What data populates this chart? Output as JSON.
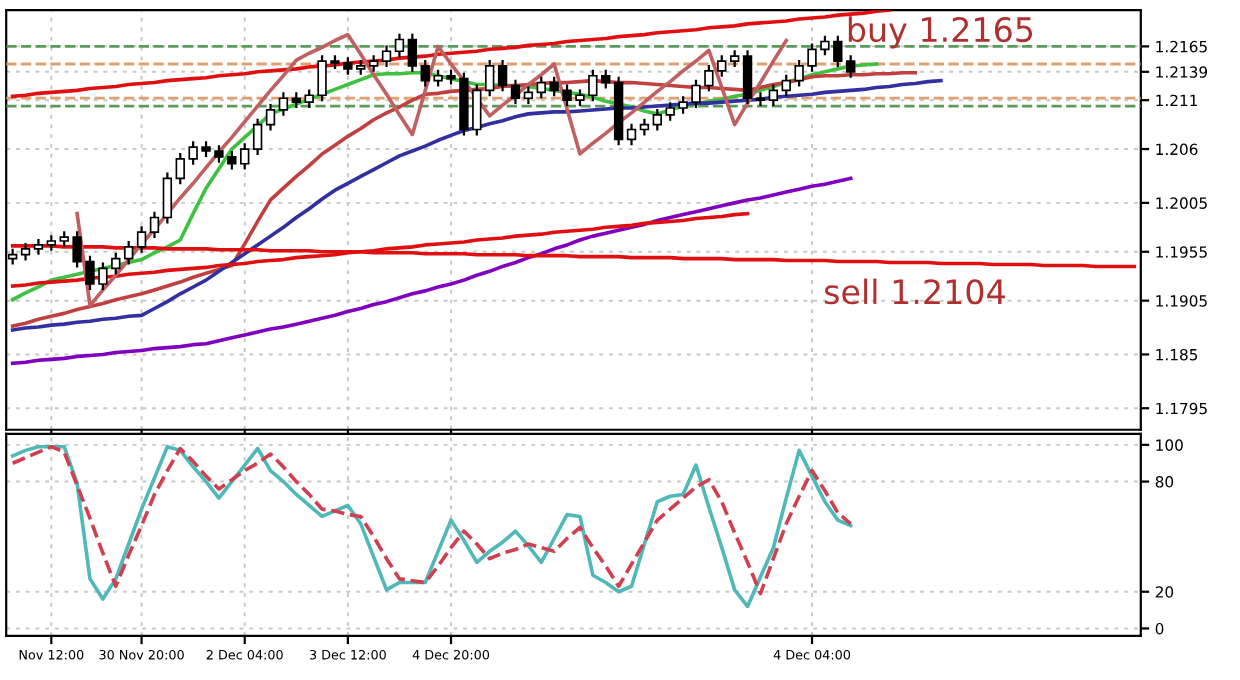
{
  "chart_data": [
    {
      "type": "candlestick",
      "tick_labels": "y",
      "grid": true,
      "categories": [
        null,
        null,
        null,
        null,
        null,
        null,
        null,
        null,
        null,
        null,
        null,
        null,
        null,
        null,
        null,
        null,
        null,
        null,
        null,
        null,
        null,
        null,
        null,
        null,
        null,
        null,
        null,
        null,
        null,
        null,
        null,
        null,
        null,
        null,
        null,
        null,
        null,
        null,
        null,
        null,
        null,
        null,
        null,
        null,
        null,
        null,
        null,
        null,
        null,
        null,
        null,
        null,
        null,
        null,
        null,
        null,
        null,
        null,
        null,
        null,
        null,
        null,
        null,
        null,
        null,
        null,
        null,
        null,
        null,
        null,
        null,
        null,
        null,
        null,
        null,
        null,
        null,
        null,
        null,
        null,
        null,
        null,
        null,
        null,
        null,
        null,
        null,
        null
      ],
      "ohlc": [
        [
          1.1948,
          1.1958,
          1.1942,
          1.1952
        ],
        [
          1.1952,
          1.1964,
          1.1946,
          1.1958
        ],
        [
          1.1958,
          1.1968,
          1.1952,
          1.1962
        ],
        [
          1.1962,
          1.1972,
          1.1956,
          1.1966
        ],
        [
          1.1966,
          1.1976,
          1.196,
          1.197
        ],
        [
          1.197,
          1.1976,
          1.1939,
          1.1945
        ],
        [
          1.1945,
          1.1951,
          1.1916,
          1.1922
        ],
        [
          1.1922,
          1.1944,
          1.1916,
          1.1938
        ],
        [
          1.1938,
          1.1954,
          1.1932,
          1.1948
        ],
        [
          1.1948,
          1.1966,
          1.1942,
          1.196
        ],
        [
          1.196,
          1.1981,
          1.1954,
          1.1975
        ],
        [
          1.1975,
          1.1996,
          1.1969,
          1.199
        ],
        [
          1.199,
          1.2036,
          1.1984,
          1.203
        ],
        [
          1.203,
          1.2056,
          1.2024,
          1.205
        ],
        [
          1.205,
          1.2068,
          1.2044,
          1.2062
        ],
        [
          1.2062,
          1.2068,
          1.2052,
          1.2058
        ],
        [
          1.2058,
          1.2064,
          1.2046,
          1.2052
        ],
        [
          1.2052,
          1.2058,
          1.2039,
          1.2045
        ],
        [
          1.2045,
          1.2066,
          1.2039,
          1.206
        ],
        [
          1.206,
          1.2091,
          1.2054,
          1.2085
        ],
        [
          1.2085,
          1.2106,
          1.2079,
          1.21
        ],
        [
          1.21,
          1.2118,
          1.2094,
          1.2112
        ],
        [
          1.2112,
          1.2118,
          1.2102,
          1.2108
        ],
        [
          1.2108,
          1.2121,
          1.2102,
          1.2115
        ],
        [
          1.2115,
          1.2156,
          1.2109,
          1.215
        ],
        [
          1.215,
          1.2156,
          1.2142,
          1.2148
        ],
        [
          1.2148,
          1.2154,
          1.2136,
          1.2142
        ],
        [
          1.2142,
          1.2151,
          1.2136,
          1.2145
        ],
        [
          1.2145,
          1.2156,
          1.2139,
          1.215
        ],
        [
          1.215,
          1.2166,
          1.2144,
          1.216
        ],
        [
          1.216,
          1.2178,
          1.2154,
          1.2172
        ],
        [
          1.2172,
          1.2178,
          1.2139,
          1.2145
        ],
        [
          1.2145,
          1.2151,
          1.2124,
          1.213
        ],
        [
          1.213,
          1.2141,
          1.2124,
          1.2135
        ],
        [
          1.2135,
          1.2141,
          1.2126,
          1.2132
        ],
        [
          1.2132,
          1.2138,
          1.2074,
          1.208
        ],
        [
          1.208,
          1.2126,
          1.2074,
          1.212
        ],
        [
          1.212,
          1.2151,
          1.2114,
          1.2145
        ],
        [
          1.2145,
          1.2151,
          1.2119,
          1.2125
        ],
        [
          1.2125,
          1.2131,
          1.2106,
          1.2112
        ],
        [
          1.2112,
          1.2124,
          1.2106,
          1.2118
        ],
        [
          1.2118,
          1.2134,
          1.2112,
          1.2128
        ],
        [
          1.2128,
          1.2134,
          1.2114,
          1.212
        ],
        [
          1.212,
          1.2126,
          1.2104,
          1.211
        ],
        [
          1.211,
          1.2121,
          1.2104,
          1.2115
        ],
        [
          1.2115,
          1.2141,
          1.2109,
          1.2135
        ],
        [
          1.2135,
          1.2141,
          1.2122,
          1.2128
        ],
        [
          1.2128,
          1.2134,
          1.2064,
          1.207
        ],
        [
          1.207,
          1.2086,
          1.2064,
          1.208
        ],
        [
          1.208,
          1.2091,
          1.2074,
          1.2085
        ],
        [
          1.2085,
          1.2101,
          1.2079,
          1.2095
        ],
        [
          1.2095,
          1.2108,
          1.2089,
          1.2102
        ],
        [
          1.2102,
          1.2114,
          1.2096,
          1.2108
        ],
        [
          1.2108,
          1.2131,
          1.2102,
          1.2125
        ],
        [
          1.2125,
          1.2146,
          1.2119,
          1.214
        ],
        [
          1.214,
          1.2156,
          1.2134,
          1.215
        ],
        [
          1.215,
          1.2161,
          1.2144,
          1.2155
        ],
        [
          1.2155,
          1.2161,
          1.2106,
          1.2112
        ],
        [
          1.2112,
          1.2118,
          1.2104,
          1.211
        ],
        [
          1.211,
          1.2126,
          1.2104,
          1.212
        ],
        [
          1.212,
          1.2136,
          1.2114,
          1.213
        ],
        [
          1.213,
          1.2151,
          1.2124,
          1.2145
        ],
        [
          1.2145,
          1.2168,
          1.2139,
          1.2162
        ],
        [
          1.2162,
          1.2176,
          1.2156,
          1.217
        ],
        [
          1.217,
          1.2176,
          1.2144,
          1.215
        ],
        [
          1.215,
          1.2156,
          1.2133,
          1.2139
        ],
        null,
        null,
        null,
        null,
        null,
        null,
        null,
        null,
        null,
        null,
        null,
        null,
        null,
        null,
        null,
        null,
        null,
        null,
        null,
        null,
        null,
        null
      ],
      "series": [
        {
          "type": "line",
          "color": "#40c040",
          "values": [
            1.1906,
            1.1913,
            1.1919,
            1.1926,
            1.1929,
            1.1932,
            1.1935,
            1.1938,
            1.1941,
            1.1944,
            1.1947,
            1.1954,
            1.196,
            1.1967,
            1.1994,
            1.202,
            1.204,
            1.206,
            1.2072,
            1.2084,
            1.2096,
            1.2101,
            1.2106,
            1.2111,
            1.2116,
            1.2121,
            1.2126,
            1.2131,
            1.2136,
            1.2137,
            1.2137,
            1.2138,
            1.2138,
            1.2135,
            1.2132,
            1.2129,
            1.2126,
            1.2126,
            1.2125,
            1.2125,
            1.2124,
            1.2122,
            1.212,
            1.2118,
            1.2116,
            1.2113,
            1.2109,
            1.2106,
            1.2103,
            1.2099,
            1.2096,
            1.21,
            1.2104,
            1.2106,
            1.2109,
            1.2111,
            1.2114,
            1.2116,
            1.212,
            1.2124,
            1.2128,
            1.2132,
            1.2136,
            1.2139,
            1.2142,
            1.2145,
            1.2146,
            1.2147,
            null,
            null,
            null,
            null,
            null,
            null,
            null,
            null,
            null,
            null,
            null,
            null,
            null,
            null,
            null,
            null,
            null,
            null,
            null,
            null
          ]
        },
        {
          "type": "line",
          "color": "#c04040",
          "values": [
            1.1879,
            1.1882,
            1.1886,
            1.1889,
            1.1892,
            1.1896,
            1.1899,
            1.1902,
            1.1906,
            1.1909,
            1.1912,
            1.1916,
            1.192,
            1.1924,
            1.1929,
            1.1933,
            1.1937,
            1.1941,
            1.1963,
            1.1986,
            1.2008,
            1.202,
            1.2032,
            1.2043,
            1.2055,
            1.2064,
            1.2073,
            1.2081,
            1.209,
            1.2097,
            1.2103,
            1.211,
            1.2116,
            1.2117,
            1.2119,
            1.212,
            1.2121,
            1.2122,
            1.2124,
            1.2125,
            1.2126,
            1.2127,
            1.2128,
            1.2128,
            1.2129,
            1.213,
            1.2129,
            1.2128,
            1.2128,
            1.2127,
            1.2126,
            1.2125,
            1.2124,
            1.2123,
            1.2123,
            1.2122,
            1.2121,
            1.212,
            1.2123,
            1.2126,
            1.2128,
            1.2131,
            1.2134,
            1.2135,
            1.2135,
            1.2136,
            1.2136,
            1.2137,
            1.2137,
            1.2138,
            1.2138,
            null,
            null,
            null,
            null,
            null,
            null,
            null,
            null,
            null,
            null,
            null,
            null,
            null,
            null,
            null,
            null,
            null
          ]
        },
        {
          "type": "line",
          "color": "#3030a0",
          "values": [
            1.1875,
            1.1877,
            1.1878,
            1.188,
            1.1881,
            1.1883,
            1.1884,
            1.1886,
            1.1887,
            1.1889,
            1.189,
            1.1897,
            1.1904,
            1.1912,
            1.1919,
            1.1926,
            1.1935,
            1.1944,
            1.1953,
            1.1962,
            1.1971,
            1.198,
            1.199,
            1.1999,
            1.2009,
            1.2018,
            1.2025,
            1.2032,
            1.2039,
            1.2046,
            1.2053,
            1.2058,
            1.2063,
            1.2069,
            1.2074,
            1.2079,
            1.2082,
            1.2086,
            1.2089,
            1.2093,
            1.2096,
            1.2097,
            1.2098,
            1.2098,
            1.2099,
            1.21,
            1.2101,
            1.2102,
            1.2102,
            1.2103,
            1.2104,
            1.2105,
            1.2106,
            1.2107,
            1.2107,
            1.2108,
            1.2109,
            1.211,
            1.2111,
            1.2113,
            1.2114,
            1.2115,
            1.2116,
            1.2118,
            1.2119,
            1.212,
            1.2121,
            1.2123,
            1.2124,
            1.2126,
            1.2127,
            1.2129,
            1.213,
            null,
            null,
            null,
            null,
            null,
            null,
            null,
            null,
            null,
            null,
            null,
            null,
            null,
            null,
            null
          ]
        },
        {
          "type": "line",
          "color": "#8000c0",
          "values": [
            1.1841,
            1.1842,
            1.1844,
            1.1845,
            1.1846,
            1.1848,
            1.1849,
            1.185,
            1.1852,
            1.1853,
            1.1854,
            1.1856,
            1.1857,
            1.1858,
            1.186,
            1.1861,
            1.1864,
            1.1867,
            1.187,
            1.1873,
            1.1876,
            1.1878,
            1.1881,
            1.1884,
            1.1887,
            1.189,
            1.1894,
            1.1897,
            1.1901,
            1.1904,
            1.1908,
            1.1912,
            1.1915,
            1.1919,
            1.1922,
            1.1926,
            1.1931,
            1.1935,
            1.194,
            1.1944,
            1.1949,
            1.1953,
            1.1958,
            1.1962,
            1.1967,
            1.1971,
            1.1974,
            1.1977,
            1.198,
            1.1983,
            1.1987,
            1.199,
            1.1993,
            1.1996,
            1.1999,
            1.2002,
            1.2005,
            1.2008,
            1.201,
            1.2013,
            1.2016,
            1.2019,
            1.2022,
            1.2024,
            1.2027,
            1.203,
            null,
            null,
            null,
            null,
            null,
            null,
            null,
            null,
            null,
            null,
            null,
            null,
            null,
            null,
            null,
            null,
            null,
            null,
            null,
            null,
            null,
            null
          ]
        },
        {
          "type": "line",
          "color": "#e01010",
          "values": [
            1.2114,
            1.2115,
            1.2117,
            1.2118,
            1.2119,
            1.212,
            1.2122,
            1.2123,
            1.2124,
            1.2126,
            1.2127,
            1.2128,
            1.213,
            1.2131,
            1.2132,
            1.2133,
            1.2135,
            1.2136,
            1.2137,
            1.2139,
            1.214,
            1.2141,
            1.2142,
            1.2144,
            1.2145,
            1.2146,
            1.2148,
            1.2149,
            1.215,
            1.2151,
            1.2153,
            1.2154,
            1.2155,
            1.2157,
            1.2158,
            1.2159,
            1.216,
            1.2162,
            1.2163,
            1.2164,
            1.2166,
            1.2167,
            1.2168,
            1.217,
            1.2171,
            1.2172,
            1.2173,
            1.2175,
            1.2176,
            1.2177,
            1.2179,
            1.218,
            1.2181,
            1.2182,
            1.2184,
            1.2185,
            1.2186,
            1.2188,
            1.2189,
            1.219,
            1.2191,
            1.2193,
            1.2194,
            1.2195,
            1.2197,
            1.2198,
            1.2199,
            1.2201,
            1.2202,
            null,
            null,
            null,
            null,
            null,
            null,
            null,
            null,
            null,
            null,
            null,
            null,
            null,
            null,
            null,
            null,
            null,
            null,
            null
          ]
        },
        {
          "type": "line",
          "color": "#e01010",
          "values": [
            1.192,
            1.1921,
            1.1923,
            1.1924,
            1.1925,
            1.1926,
            1.1928,
            1.1929,
            1.193,
            1.1932,
            1.1933,
            1.1934,
            1.1936,
            1.1937,
            1.1938,
            1.1939,
            1.1941,
            1.1942,
            1.1943,
            1.1945,
            1.1946,
            1.1947,
            1.1949,
            1.195,
            1.1951,
            1.1952,
            1.1954,
            1.1955,
            1.1956,
            1.1958,
            1.1959,
            1.196,
            1.1962,
            1.1963,
            1.1964,
            1.1965,
            1.1967,
            1.1968,
            1.1969,
            1.1971,
            1.1972,
            1.1973,
            1.1975,
            1.1976,
            1.1977,
            1.1978,
            1.198,
            1.1981,
            1.1982,
            1.1984,
            1.1985,
            1.1986,
            1.1987,
            1.1989,
            1.199,
            1.1991,
            1.1993,
            1.1994,
            null,
            null,
            null,
            null,
            null,
            null,
            null,
            null,
            null,
            null,
            null,
            null,
            null,
            null,
            null,
            null,
            null,
            null,
            null,
            null,
            null,
            null,
            null,
            null,
            null,
            null,
            null,
            null,
            null,
            null
          ]
        },
        {
          "type": "line",
          "color": "#e01010",
          "values": [
            1.1961,
            1.1961,
            1.1961,
            1.1961,
            1.196,
            1.196,
            1.196,
            1.196,
            1.1959,
            1.1959,
            1.1959,
            1.1959,
            1.1958,
            1.1958,
            1.1958,
            1.1958,
            1.1957,
            1.1957,
            1.1957,
            1.1957,
            1.1956,
            1.1956,
            1.1956,
            1.1956,
            1.1955,
            1.1955,
            1.1955,
            1.1955,
            1.1954,
            1.1954,
            1.1954,
            1.1954,
            1.1953,
            1.1953,
            1.1953,
            1.1953,
            1.1952,
            1.1952,
            1.1952,
            1.1952,
            1.1951,
            1.1951,
            1.1951,
            1.1951,
            1.195,
            1.195,
            1.195,
            1.195,
            1.1949,
            1.1949,
            1.1949,
            1.1949,
            1.1948,
            1.1948,
            1.1948,
            1.1948,
            1.1947,
            1.1947,
            1.1947,
            1.1947,
            1.1946,
            1.1946,
            1.1946,
            1.1946,
            1.1945,
            1.1945,
            1.1945,
            1.1945,
            1.1944,
            1.1944,
            1.1944,
            1.1944,
            1.1943,
            1.1943,
            1.1943,
            1.1943,
            1.1942,
            1.1942,
            1.1942,
            1.1942,
            1.1941,
            1.1941,
            1.1941,
            1.1941,
            1.194,
            1.194,
            1.194,
            1.194
          ]
        },
        {
          "type": "line",
          "color": "#c06060",
          "values": [
            null,
            null,
            null,
            null,
            null,
            1.1994,
            1.19,
            1.1916,
            1.1931,
            1.1947,
            1.1963,
            1.1978,
            1.1994,
            1.201,
            1.2025,
            1.2041,
            1.2057,
            1.2072,
            1.2088,
            1.2104,
            1.212,
            1.2135,
            1.2151,
            1.2158,
            1.2164,
            1.2171,
            1.2177,
            1.2157,
            1.2136,
            1.2116,
            1.2095,
            1.2075,
            1.212,
            1.2165,
            1.2147,
            1.213,
            1.2112,
            1.2094,
            1.2105,
            1.2115,
            1.2126,
            1.2136,
            1.2147,
            1.2101,
            1.2055,
            1.2066,
            1.2076,
            1.2087,
            1.2097,
            1.2108,
            1.2119,
            1.2129,
            1.214,
            1.215,
            1.2161,
            1.2123,
            1.2085,
            1.2107,
            1.2128,
            1.215,
            1.2171,
            null,
            null,
            null,
            null,
            null,
            null,
            null,
            null,
            null,
            null,
            null,
            null,
            null,
            null,
            null,
            null,
            null,
            null,
            null,
            null,
            null,
            null,
            null,
            null,
            null,
            null,
            null
          ]
        }
      ],
      "ref_lines": [
        {
          "axis": "y",
          "value": 1.2165,
          "color": "#5a9a5a",
          "line_style": "dashed"
        },
        {
          "axis": "y",
          "value": 1.2147,
          "color": "#e0a070",
          "line_style": "dashed"
        },
        {
          "axis": "y",
          "value": 1.2112,
          "color": "#e0a070",
          "line_style": "dashed"
        },
        {
          "axis": "y",
          "value": 1.2104,
          "color": "#5a9a5a",
          "line_style": "dashed"
        }
      ],
      "annotations": [
        "buy 1.2165",
        "sell 1.2104"
      ],
      "ylim": [
        1.1773,
        1.2202
      ],
      "yticks": [
        1.2165,
        {
          "value": 1.2139,
          "label": "1.2139"
        },
        1.211,
        1.206,
        1.2005,
        1.1955,
        1.1905,
        1.185,
        1.1795
      ]
    },
    {
      "type": "line",
      "grid": true,
      "categories": [
        null,
        null,
        null,
        "Nov 12:00",
        null,
        null,
        null,
        null,
        null,
        null,
        "30 Nov 20:00",
        null,
        null,
        null,
        null,
        null,
        null,
        null,
        "2 Dec 04:00",
        null,
        null,
        null,
        null,
        null,
        null,
        null,
        "3 Dec 12:00",
        null,
        null,
        null,
        null,
        null,
        null,
        null,
        "4 Dec 20:00",
        null,
        null,
        null,
        null,
        null,
        null,
        null,
        null,
        null,
        null,
        null,
        null,
        null,
        null,
        null,
        null,
        null,
        null,
        null,
        null,
        null,
        null,
        null,
        null,
        null,
        null,
        null,
        "4 Dec 04:00",
        null,
        null,
        null,
        null,
        null,
        null,
        null,
        null,
        null,
        null,
        null,
        null,
        null,
        null,
        null,
        null,
        null,
        null,
        null,
        null,
        null,
        null,
        null,
        null,
        null
      ],
      "series": [
        {
          "color": "#50b8b8",
          "line_style": "solid",
          "values": [
            94,
            97,
            99,
            99,
            99,
            79,
            27,
            16,
            27,
            46,
            65,
            82,
            99,
            97,
            88,
            80,
            71,
            80,
            89,
            98,
            86,
            80,
            73,
            67,
            61,
            64,
            67,
            57,
            39,
            21,
            25,
            25,
            25,
            42,
            59,
            48,
            36,
            42,
            47,
            53,
            45,
            36,
            49,
            62,
            61,
            29,
            25,
            20,
            23,
            46,
            69,
            72,
            73,
            89,
            66,
            44,
            21,
            12,
            28,
            44,
            71,
            97,
            83,
            69,
            59,
            56,
            null,
            null,
            null,
            null,
            null,
            null,
            null,
            null,
            null,
            null,
            null,
            null,
            null,
            null,
            null,
            null,
            null,
            null,
            null,
            null,
            null,
            null
          ]
        },
        {
          "color": "#d04050",
          "line_style": "dashed",
          "values": [
            90,
            93,
            96,
            99,
            96,
            78,
            60,
            41,
            23,
            40,
            56,
            73,
            86,
            98,
            91,
            83,
            76,
            81,
            86,
            90,
            95,
            88,
            80,
            73,
            65,
            64,
            62,
            61,
            50,
            38,
            27,
            26,
            25,
            34,
            44,
            53,
            46,
            38,
            41,
            43,
            46,
            44,
            42,
            49,
            55,
            44,
            34,
            23,
            35,
            47,
            59,
            65,
            71,
            77,
            81,
            69,
            52,
            36,
            19,
            38,
            57,
            72,
            86,
            75,
            63,
            57,
            null,
            null,
            null,
            null,
            null,
            null,
            null,
            null,
            null,
            null,
            null,
            null,
            null,
            null,
            null,
            null,
            null,
            null,
            null,
            null,
            null,
            null
          ]
        }
      ],
      "ylim": [
        -4,
        106
      ],
      "yticks": [
        0,
        20,
        80,
        100
      ]
    }
  ]
}
